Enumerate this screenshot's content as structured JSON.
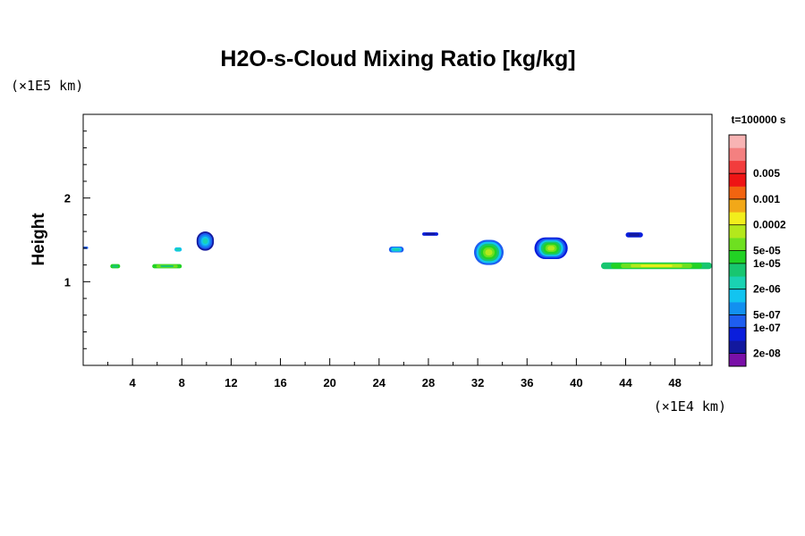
{
  "chart_data": {
    "type": "heatmap",
    "title": "H2O-s-Cloud Mixing Ratio [kg/kg]",
    "ylabel": "Height",
    "xlabel": "",
    "x_unit": "(×1E4 km)",
    "y_unit": "(×1E5 km)",
    "time_label": "t=100000 s",
    "xlim": [
      0,
      51
    ],
    "ylim": [
      0,
      3
    ],
    "x_ticks": [
      4,
      8,
      12,
      16,
      20,
      24,
      28,
      32,
      36,
      40,
      44,
      48
    ],
    "x_minor_ticks": [
      2,
      6,
      10,
      14,
      18,
      22,
      26,
      30,
      34,
      38,
      42,
      46,
      50
    ],
    "y_ticks": [
      1,
      2
    ],
    "y_minor_ticks": [
      0.2,
      0.4,
      0.6,
      0.8,
      1.2,
      1.4,
      1.6,
      1.8,
      2.2,
      2.4,
      2.6,
      2.8
    ],
    "colorbar": {
      "colors": [
        "#7a10a8",
        "#12189e",
        "#0a1edc",
        "#1e5ef0",
        "#1290f0",
        "#12c4f0",
        "#1ad2b2",
        "#18c670",
        "#22d224",
        "#6ee020",
        "#b4e81c",
        "#f2ee1c",
        "#f2a818",
        "#f26410",
        "#ee1414",
        "#f23c3c",
        "#f48080",
        "#f8b4b4"
      ],
      "labels": [
        {
          "level": 1,
          "text": "2e-08"
        },
        {
          "level": 3,
          "text": "1e-07"
        },
        {
          "level": 4,
          "text": "5e-07"
        },
        {
          "level": 6,
          "text": "2e-06"
        },
        {
          "level": 8,
          "text": "1e-05"
        },
        {
          "level": 9,
          "text": "5e-05"
        },
        {
          "level": 11,
          "text": "0.0002"
        },
        {
          "level": 13,
          "text": "0.001"
        },
        {
          "level": 15,
          "text": "0.005"
        }
      ]
    },
    "cloud_regions": [
      {
        "name": "small-0",
        "x": [
          0,
          0.4
        ],
        "y": [
          1.39,
          1.42
        ],
        "levels": [
          3
        ]
      },
      {
        "name": "cloud-2.5",
        "x": [
          2.2,
          3.0
        ],
        "y": [
          1.16,
          1.21
        ],
        "levels": [
          8,
          7
        ]
      },
      {
        "name": "cloud-5.5",
        "x": [
          5.6,
          8.0
        ],
        "y": [
          1.16,
          1.21
        ],
        "levels": [
          8,
          9,
          7
        ]
      },
      {
        "name": "cloud-7.8",
        "x": [
          7.4,
          8.0
        ],
        "y": [
          1.36,
          1.41
        ],
        "levels": [
          5,
          6
        ]
      },
      {
        "name": "plume-10",
        "x": [
          9.2,
          10.6
        ],
        "y": [
          1.37,
          1.6
        ],
        "levels": [
          1,
          3,
          4,
          5,
          6
        ]
      },
      {
        "name": "cloud-25.5",
        "x": [
          24.8,
          26.0
        ],
        "y": [
          1.35,
          1.42
        ],
        "levels": [
          3,
          5,
          6
        ]
      },
      {
        "name": "cloud-28",
        "x": [
          27.5,
          28.8
        ],
        "y": [
          1.55,
          1.59
        ],
        "levels": [
          2,
          1
        ]
      },
      {
        "name": "cluster-33",
        "x": [
          31.7,
          34.1
        ],
        "y": [
          1.2,
          1.5
        ],
        "levels": [
          3,
          5,
          7,
          8,
          9,
          10
        ]
      },
      {
        "name": "cluster-38",
        "x": [
          36.6,
          39.3
        ],
        "y": [
          1.27,
          1.53
        ],
        "levels": [
          2,
          3,
          5,
          7,
          8,
          9,
          10
        ]
      },
      {
        "name": "cloud-44.5",
        "x": [
          44.0,
          45.4
        ],
        "y": [
          1.53,
          1.59
        ],
        "levels": [
          2,
          1
        ]
      },
      {
        "name": "band-east",
        "x": [
          42.0,
          51.0
        ],
        "y": [
          1.15,
          1.23
        ],
        "levels": [
          7,
          8,
          9,
          10,
          11
        ]
      }
    ]
  }
}
